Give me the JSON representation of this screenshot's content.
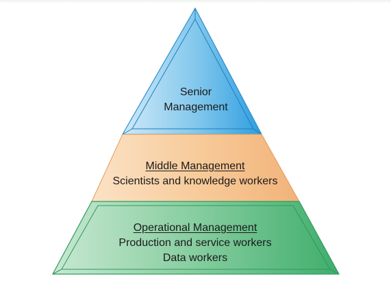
{
  "pyramid": {
    "tiers": [
      {
        "id": "senior",
        "title": "",
        "lines": [
          "Senior",
          "Management"
        ],
        "color": "#35a3de"
      },
      {
        "id": "middle",
        "title": "Middle Management",
        "lines": [
          "Scientists and knowledge workers"
        ],
        "color": "#f2b27a"
      },
      {
        "id": "operational",
        "title": "Operational Management",
        "lines": [
          "Production and service workers",
          "Data workers"
        ],
        "color": "#4bb173"
      }
    ]
  }
}
